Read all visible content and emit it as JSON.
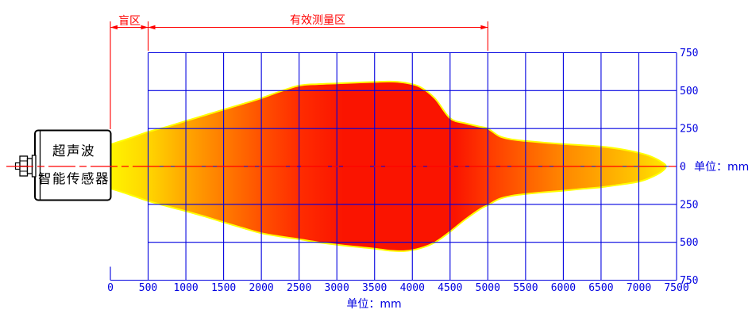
{
  "annotations": {
    "blind_zone_label": "盲区",
    "effective_zone_label": "有效测量区"
  },
  "axis": {
    "unit_label_bottom": "单位：mm",
    "unit_label_right": "单位：mm"
  },
  "sensor": {
    "label_line1": "超声波",
    "label_line2": "智能传感器"
  },
  "colors": {
    "grid_blue": "#0000e0",
    "annotation_red": "#ff0000",
    "sensor_outline": "#000000",
    "beam_outline": "#ffff00",
    "beam_core_red": "#fa1400",
    "beam_tip_yellow": "#ffea00",
    "background": "#ffffff"
  },
  "chart_data": {
    "type": "area",
    "title": "",
    "xlabel": "单位：mm",
    "ylabel": "单位：mm",
    "xlim": [
      0,
      7500
    ],
    "ylim": [
      -750,
      750
    ],
    "grid": true,
    "x_ticks": [
      0,
      500,
      1000,
      1500,
      2000,
      2500,
      3000,
      3500,
      4000,
      4500,
      5000,
      5500,
      6000,
      6500,
      7000,
      7500
    ],
    "y_ticks_right": {
      "values_mm": [
        750,
        500,
        250,
        0,
        -250,
        -500,
        -750
      ],
      "labels": [
        "750",
        "500",
        "250",
        "0",
        "250",
        "500",
        "750"
      ]
    },
    "grid_step_x_mm": 500,
    "grid_step_y_mm": 250,
    "blind_zone_mm": [
      0,
      500
    ],
    "effective_zone_mm": [
      500,
      5000
    ],
    "beam_profile": {
      "description": "ultrasonic beam envelope: half-width above (upper) and below (lower) centerline vs distance",
      "distance_mm": [
        0,
        250,
        500,
        750,
        1000,
        1250,
        1500,
        1750,
        2000,
        2250,
        2500,
        2750,
        3000,
        3250,
        3500,
        3700,
        3900,
        4100,
        4300,
        4500,
        4700,
        4900,
        5000,
        5150,
        5300,
        5500,
        5750,
        6000,
        6250,
        6500,
        6750,
        7000,
        7150,
        7300,
        7360
      ],
      "upper_mm": [
        145,
        185,
        228,
        262,
        300,
        337,
        375,
        412,
        450,
        495,
        533,
        543,
        548,
        553,
        557,
        560,
        552,
        525,
        448,
        318,
        285,
        262,
        250,
        200,
        180,
        168,
        157,
        148,
        140,
        131,
        115,
        90,
        68,
        30,
        0
      ],
      "lower_mm": [
        145,
        185,
        228,
        262,
        295,
        330,
        368,
        405,
        440,
        462,
        480,
        500,
        516,
        530,
        542,
        555,
        558,
        540,
        500,
        430,
        350,
        280,
        255,
        215,
        195,
        182,
        170,
        160,
        148,
        137,
        120,
        100,
        75,
        35,
        0
      ]
    },
    "beam_gradient": [
      {
        "offset": 0.0,
        "color": "#fff400"
      },
      {
        "offset": 0.07,
        "color": "#ffd400"
      },
      {
        "offset": 0.14,
        "color": "#ffa400"
      },
      {
        "offset": 0.2,
        "color": "#ff7e00"
      },
      {
        "offset": 0.27,
        "color": "#ff5200"
      },
      {
        "offset": 0.34,
        "color": "#ff2c00"
      },
      {
        "offset": 0.42,
        "color": "#fa1400"
      },
      {
        "offset": 0.62,
        "color": "#fa1400"
      },
      {
        "offset": 0.68,
        "color": "#ff3a00"
      },
      {
        "offset": 0.75,
        "color": "#ff6200"
      },
      {
        "offset": 0.82,
        "color": "#ff8a00"
      },
      {
        "offset": 0.9,
        "color": "#ffae00"
      },
      {
        "offset": 0.96,
        "color": "#ffcc00"
      },
      {
        "offset": 1.0,
        "color": "#ffea00"
      }
    ]
  }
}
